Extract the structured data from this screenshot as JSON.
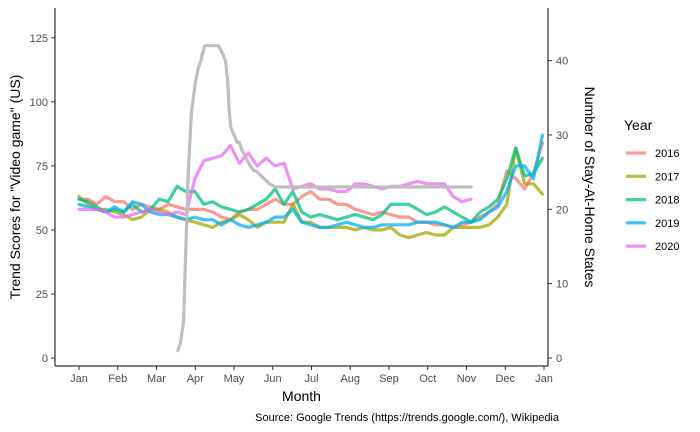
{
  "chart_data": {
    "type": "line",
    "xlabel": "Month",
    "ylabel": "Trend Scores for \"Video game\" (US)",
    "ylabel_right": "Number of Stay-At-Home States",
    "caption": "Source: Google Trends (https://trends.google.com/), Wikipedia",
    "x_ticks": [
      "Jan",
      "Feb",
      "Mar",
      "Apr",
      "May",
      "Jun",
      "Jul",
      "Aug",
      "Sep",
      "Oct",
      "Nov",
      "Dec",
      "Jan"
    ],
    "xlim": [
      0,
      12.4
    ],
    "ylim": [
      0,
      130
    ],
    "y_ticks": [
      0,
      25,
      50,
      75,
      100,
      125
    ],
    "ylim_right": [
      0,
      42.5
    ],
    "y_ticks_right": [
      0,
      10,
      20,
      30,
      40
    ],
    "grid": false,
    "legend": {
      "title": "Year",
      "position": "right"
    },
    "series": [
      {
        "name": "2016",
        "color": "#F8766D",
        "x": [
          0,
          0.23,
          0.46,
          0.69,
          0.92,
          1.15,
          1.38,
          1.61,
          1.84,
          2.07,
          2.3,
          2.53,
          2.76,
          2.99,
          3.22,
          3.45,
          3.68,
          3.91,
          4.14,
          4.37,
          4.6,
          4.83,
          5.06,
          5.29,
          5.52,
          5.75,
          5.98,
          6.21,
          6.44,
          6.67,
          6.9,
          7.13,
          7.36,
          7.59,
          7.82,
          8.05,
          8.28,
          8.51,
          8.74,
          8.97,
          9.2,
          9.43,
          9.66,
          9.89,
          10.12,
          10.35,
          10.58,
          10.81,
          11.04,
          11.27,
          11.5,
          11.73,
          11.96
        ],
        "y": [
          62,
          62,
          60,
          63,
          61,
          61,
          58,
          60,
          59,
          58,
          60,
          59,
          58,
          58,
          58,
          57,
          55,
          54,
          57,
          58,
          58,
          60,
          62,
          60,
          60,
          63,
          65,
          62,
          62,
          60,
          60,
          58,
          57,
          56,
          57,
          56,
          55,
          55,
          53,
          53,
          52,
          52,
          51,
          52,
          53,
          55,
          57,
          60,
          73,
          70,
          66,
          72,
          84
        ]
      },
      {
        "name": "2017",
        "color": "#A3A500",
        "x": [
          0,
          0.23,
          0.46,
          0.69,
          0.92,
          1.15,
          1.38,
          1.61,
          1.84,
          2.07,
          2.3,
          2.53,
          2.76,
          2.99,
          3.22,
          3.45,
          3.68,
          3.91,
          4.14,
          4.37,
          4.6,
          4.83,
          5.06,
          5.29,
          5.52,
          5.75,
          5.98,
          6.21,
          6.44,
          6.67,
          6.9,
          7.13,
          7.36,
          7.59,
          7.82,
          8.05,
          8.28,
          8.51,
          8.74,
          8.97,
          9.2,
          9.43,
          9.66,
          9.89,
          10.12,
          10.35,
          10.58,
          10.81,
          11.04,
          11.27,
          11.5,
          11.73,
          11.96
        ],
        "y": [
          63,
          60,
          58,
          58,
          57,
          56,
          54,
          55,
          58,
          58,
          57,
          55,
          54,
          53,
          52,
          51,
          53,
          54,
          56,
          54,
          51,
          53,
          53,
          53,
          60,
          53,
          53,
          51,
          51,
          51,
          51,
          50,
          51,
          50,
          50,
          51,
          48,
          47,
          48,
          49,
          48,
          48,
          51,
          51,
          51,
          51,
          52,
          55,
          60,
          82,
          68,
          68,
          64
        ]
      },
      {
        "name": "2018",
        "color": "#00BF7D",
        "x": [
          0,
          0.23,
          0.46,
          0.69,
          0.92,
          1.15,
          1.38,
          1.61,
          1.84,
          2.07,
          2.3,
          2.53,
          2.76,
          2.99,
          3.22,
          3.45,
          3.68,
          3.91,
          4.14,
          4.37,
          4.6,
          4.83,
          5.06,
          5.29,
          5.52,
          5.75,
          5.98,
          6.21,
          6.44,
          6.67,
          6.9,
          7.13,
          7.36,
          7.59,
          7.82,
          8.05,
          8.28,
          8.51,
          8.74,
          8.97,
          9.2,
          9.43,
          9.66,
          9.89,
          10.12,
          10.35,
          10.58,
          10.81,
          11.04,
          11.27,
          11.5,
          11.73,
          11.96
        ],
        "y": [
          62,
          61,
          59,
          57,
          58,
          57,
          60,
          57,
          58,
          62,
          61,
          67,
          65,
          65,
          60,
          61,
          59,
          58,
          57,
          58,
          60,
          62,
          66,
          60,
          65,
          57,
          55,
          56,
          55,
          54,
          55,
          56,
          55,
          54,
          56,
          60,
          60,
          60,
          58,
          56,
          57,
          59,
          57,
          55,
          53,
          57,
          59,
          62,
          70,
          82,
          71,
          72,
          78
        ]
      },
      {
        "name": "2019",
        "color": "#00B0F6",
        "x": [
          0,
          0.23,
          0.46,
          0.69,
          0.92,
          1.15,
          1.38,
          1.61,
          1.84,
          2.07,
          2.3,
          2.53,
          2.76,
          2.99,
          3.22,
          3.45,
          3.68,
          3.91,
          4.14,
          4.37,
          4.6,
          4.83,
          5.06,
          5.29,
          5.52,
          5.75,
          5.98,
          6.21,
          6.44,
          6.67,
          6.9,
          7.13,
          7.36,
          7.59,
          7.82,
          8.05,
          8.28,
          8.51,
          8.74,
          8.97,
          9.2,
          9.43,
          9.66,
          9.89,
          10.12,
          10.35,
          10.58,
          10.81,
          11.04,
          11.27,
          11.5,
          11.73,
          11.96
        ],
        "y": [
          60,
          59,
          58,
          57,
          59,
          57,
          61,
          60,
          57,
          56,
          56,
          55,
          54,
          55,
          54,
          54,
          52,
          54,
          52,
          51,
          52,
          53,
          55,
          55,
          58,
          53,
          52,
          51,
          51,
          52,
          53,
          52,
          51,
          51,
          52,
          52,
          52,
          52,
          53,
          53,
          53,
          52,
          51,
          53,
          53,
          54,
          57,
          59,
          65,
          75,
          75,
          70,
          87
        ]
      },
      {
        "name": "2020",
        "color": "#E76BF3",
        "x": [
          0,
          0.23,
          0.46,
          0.69,
          0.92,
          1.15,
          1.38,
          1.61,
          1.84,
          2.07,
          2.3,
          2.53,
          2.76,
          2.99,
          3.22,
          3.45,
          3.68,
          3.91,
          4.14,
          4.37,
          4.6,
          4.83,
          5.06,
          5.29,
          5.52,
          5.75,
          5.98,
          6.21,
          6.44,
          6.67,
          6.9,
          7.13,
          7.36,
          7.59,
          7.82,
          8.05,
          8.28,
          8.51,
          8.74,
          8.97,
          9.2,
          9.43,
          9.66,
          9.89,
          10.12
        ],
        "y": [
          58,
          58,
          58,
          57,
          55,
          55,
          56,
          57,
          58,
          57,
          56,
          57,
          56,
          70,
          77,
          78,
          79,
          83,
          76,
          80,
          75,
          78,
          75,
          76,
          66,
          67,
          68,
          66,
          66,
          65,
          65,
          68,
          68,
          67,
          66,
          67,
          67,
          68,
          69,
          68,
          68,
          68,
          63,
          61,
          62
        ]
      },
      {
        "name": "Stay-at-home states",
        "color": "#BEBEBE",
        "axis": "right",
        "x": [
          2.55,
          2.62,
          2.7,
          2.76,
          2.82,
          2.9,
          3.0,
          3.08,
          3.15,
          3.18,
          3.2,
          3.24,
          3.3,
          3.4,
          3.5,
          3.6,
          3.7,
          3.78,
          3.84,
          3.88,
          3.92,
          4.0,
          4.08,
          4.14,
          4.2,
          4.3,
          4.4,
          4.5,
          4.6,
          4.7,
          4.8,
          4.9,
          5.0,
          5.05,
          5.1,
          5.3,
          5.6,
          6.0,
          6.5,
          7.0,
          7.5,
          8.0,
          8.5,
          9.0,
          9.5,
          10.0,
          10.12
        ],
        "y": [
          1,
          2,
          5,
          15,
          25,
          33,
          37,
          39,
          40,
          41,
          41,
          42,
          42,
          42,
          42,
          42,
          41,
          40,
          37,
          33,
          31,
          30,
          29,
          29,
          28,
          27,
          26,
          25.3,
          25,
          24.5,
          24,
          23.5,
          23.2,
          23,
          23,
          23,
          23,
          23,
          23,
          23,
          23,
          23,
          23,
          23,
          23,
          23,
          23
        ]
      }
    ]
  }
}
